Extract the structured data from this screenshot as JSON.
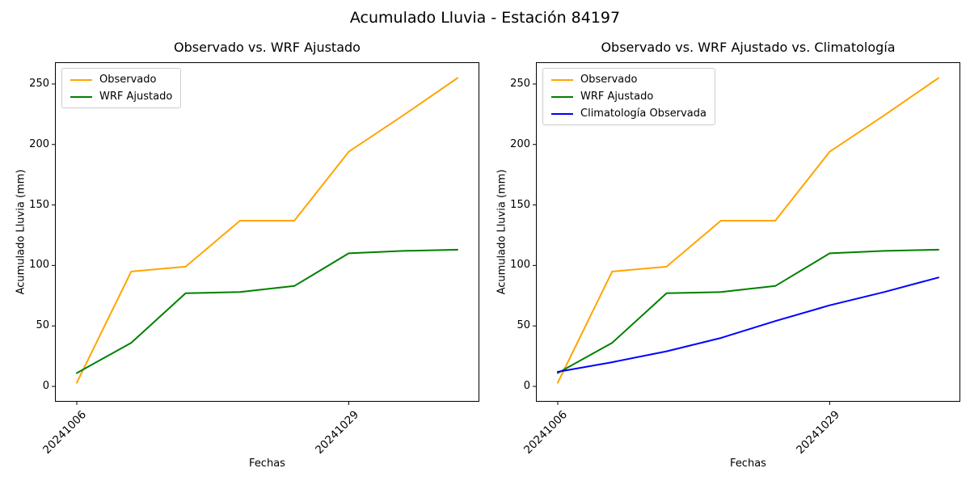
{
  "title": "Acumulado Lluvia - Estación 84197",
  "chart_data": [
    {
      "type": "line",
      "title": "Observado vs. WRF Ajustado",
      "xlabel": "Fechas",
      "ylabel": "Acumulado Lluvia (mm)",
      "y_ticks": [
        0,
        50,
        100,
        150,
        200,
        250
      ],
      "ylim": [
        -12.7,
        268
      ],
      "x_ticks": [
        {
          "i": 0,
          "label": "20241006"
        },
        {
          "i": 5,
          "label": "20241029"
        }
      ],
      "grid": false,
      "legend_position": "upper left",
      "series": [
        {
          "name": "Observado",
          "color": "#FFA500",
          "values": [
            3,
            95,
            99,
            137,
            137,
            194,
            224,
            255
          ]
        },
        {
          "name": "WRF Ajustado",
          "color": "#008000",
          "values": [
            11,
            36,
            77,
            78,
            83,
            110,
            112,
            113
          ]
        }
      ]
    },
    {
      "type": "line",
      "title": "Observado vs. WRF Ajustado vs. Climatología",
      "xlabel": "Fechas",
      "ylabel": "Acumulado Lluvia (mm)",
      "y_ticks": [
        0,
        50,
        100,
        150,
        200,
        250
      ],
      "ylim": [
        -12.7,
        268
      ],
      "x_ticks": [
        {
          "i": 0,
          "label": "20241006"
        },
        {
          "i": 5,
          "label": "20241029"
        }
      ],
      "grid": false,
      "legend_position": "upper left",
      "series": [
        {
          "name": "Observado",
          "color": "#FFA500",
          "values": [
            3,
            95,
            99,
            137,
            137,
            194,
            224,
            255
          ]
        },
        {
          "name": "WRF Ajustado",
          "color": "#008000",
          "values": [
            11,
            36,
            77,
            78,
            83,
            110,
            112,
            113
          ]
        },
        {
          "name": "Climatología Observada",
          "color": "#0000FF",
          "values": [
            12,
            20,
            29,
            40,
            54,
            67,
            78,
            90
          ]
        }
      ]
    }
  ]
}
